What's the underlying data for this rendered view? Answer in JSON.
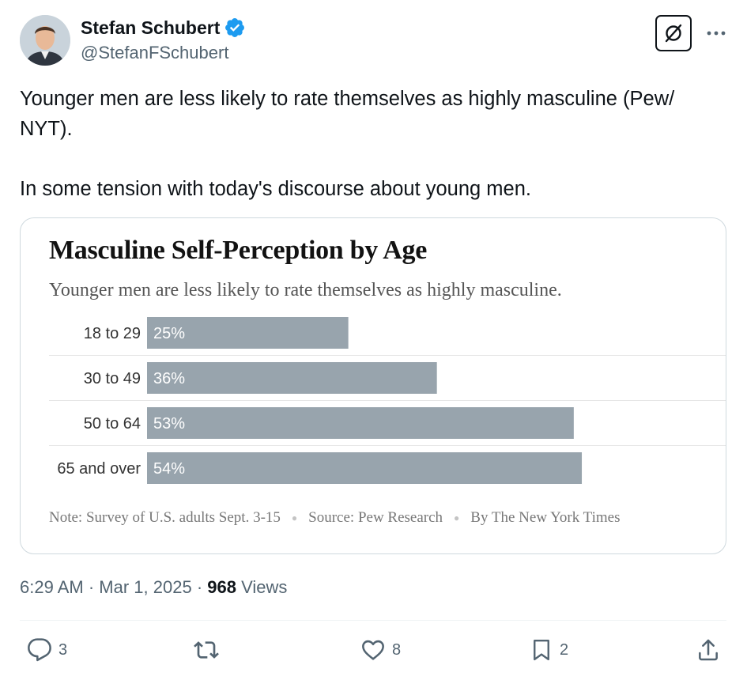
{
  "author": {
    "display_name": "Stefan Schubert",
    "handle": "@StefanFSchubert",
    "verified": true
  },
  "tweet": {
    "line1": "Younger men are less likely to rate themselves as highly masculine (Pew/ NYT).",
    "line2": "In some tension with today's discourse about young men."
  },
  "chart_data": {
    "type": "bar",
    "orientation": "horizontal",
    "title": "Masculine Self-Perception by Age",
    "subtitle": "Younger men are less likely to rate themselves as highly masculine.",
    "categories": [
      "18 to 29",
      "30 to 49",
      "50 to 64",
      "65 and over"
    ],
    "values": [
      25,
      36,
      53,
      54
    ],
    "value_labels": [
      "25%",
      "36%",
      "53%",
      "54%"
    ],
    "xlim": [
      0,
      70
    ],
    "bar_color": "#98a4ad",
    "note": "Note: Survey of U.S. adults Sept. 3-15",
    "source": "Source: Pew Research",
    "credit": "By The New York Times"
  },
  "meta": {
    "time": "6:29 AM",
    "date": "Mar 1, 2025",
    "views_count": "968",
    "views_label": "Views"
  },
  "actions": {
    "reply_count": "3",
    "like_count": "8",
    "bookmark_count": "2"
  },
  "icons": {
    "verified": "verified-badge-icon",
    "grok": "grok-icon",
    "more": "more-icon",
    "reply": "reply-icon",
    "retweet": "retweet-icon",
    "like": "heart-icon",
    "bookmark": "bookmark-icon",
    "share": "share-icon"
  },
  "colors": {
    "verified_blue": "#1d9bf0",
    "muted_text": "#536471"
  }
}
